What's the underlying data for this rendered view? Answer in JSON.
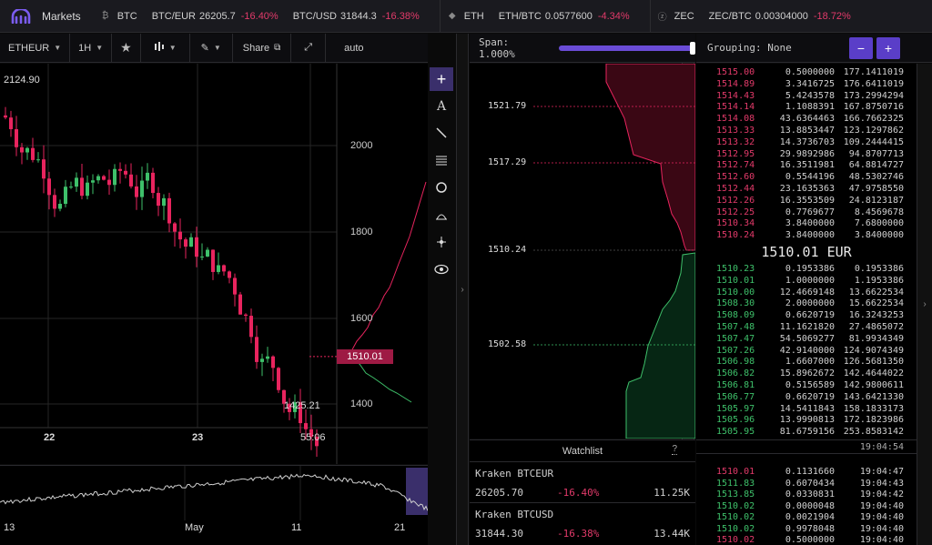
{
  "topbar": {
    "markets_label": "Markets",
    "coins": [
      {
        "icon": "bitcoin-icon",
        "glyph": "₿",
        "symbol": "BTC",
        "pairs": [
          {
            "name": "BTC/EUR",
            "price": "26205.7",
            "change": "-16.40%"
          },
          {
            "name": "BTC/USD",
            "price": "31844.3",
            "change": "-16.38%"
          }
        ]
      },
      {
        "icon": "ethereum-icon",
        "glyph": "◆",
        "symbol": "ETH",
        "pairs": [
          {
            "name": "ETH/BTC",
            "price": "0.0577600",
            "change": "-4.34%"
          }
        ]
      },
      {
        "icon": "zcash-icon",
        "glyph": "ⓩ",
        "symbol": "ZEC",
        "pairs": [
          {
            "name": "ZEC/BTC",
            "price": "0.00304000",
            "change": "-18.72%"
          }
        ]
      }
    ]
  },
  "chart_toolbar": {
    "pair": "ETHEUR",
    "interval": "1H",
    "share_label": "Share",
    "scale_mode": "auto"
  },
  "chart": {
    "price_labels": [
      "2000",
      "1800",
      "1600",
      "1400"
    ],
    "top_left_value": "2124.90",
    "current_price": "1510.01",
    "low_value": "1425.21",
    "date_labels": [
      "22",
      "23"
    ],
    "countdown": "55:06"
  },
  "mini_chart": {
    "date_labels": [
      "13",
      "May",
      "11",
      "21"
    ]
  },
  "depth": {
    "span_label": "Span: 1.000%",
    "levels": [
      "1521.79",
      "1517.29",
      "1510.24",
      "1502.58"
    ]
  },
  "watchlist": {
    "title": "Watchlist",
    "help": "?",
    "items": [
      {
        "name": "Kraken BTCEUR",
        "price": "26205.70",
        "change": "-16.40%",
        "volume": "11.25K"
      },
      {
        "name": "Kraken BTCUSD",
        "price": "31844.30",
        "change": "-16.38%",
        "volume": "13.44K"
      }
    ]
  },
  "orderbook": {
    "grouping_label": "Grouping: None",
    "minus": "−",
    "plus": "+",
    "asks": [
      [
        "1515.00",
        "0.5000000",
        "177.1411019"
      ],
      [
        "1514.89",
        "3.3416725",
        "176.6411019"
      ],
      [
        "1514.43",
        "5.4243578",
        "173.2994294"
      ],
      [
        "1514.14",
        "1.1088391",
        "167.8750716"
      ],
      [
        "1514.08",
        "43.6364463",
        "166.7662325"
      ],
      [
        "1513.33",
        "13.8853447",
        "123.1297862"
      ],
      [
        "1513.32",
        "14.3736703",
        "109.2444415"
      ],
      [
        "1512.95",
        "29.9892986",
        "94.8707713"
      ],
      [
        "1512.74",
        "16.3511981",
        "64.8814727"
      ],
      [
        "1512.60",
        "0.5544196",
        "48.5302746"
      ],
      [
        "1512.44",
        "23.1635363",
        "47.9758550"
      ],
      [
        "1512.26",
        "16.3553509",
        "24.8123187"
      ],
      [
        "1512.25",
        "0.7769677",
        "8.4569678"
      ],
      [
        "1510.34",
        "3.8400000",
        "7.6800000"
      ],
      [
        "1510.24",
        "3.8400000",
        "3.8400000"
      ]
    ],
    "mid_price": "1510.01 EUR",
    "bids": [
      [
        "1510.23",
        "0.1953386",
        "0.1953386"
      ],
      [
        "1510.01",
        "1.0000000",
        "1.1953386"
      ],
      [
        "1510.00",
        "12.4669148",
        "13.6622534"
      ],
      [
        "1508.30",
        "2.0000000",
        "15.6622534"
      ],
      [
        "1508.09",
        "0.6620719",
        "16.3243253"
      ],
      [
        "1507.48",
        "11.1621820",
        "27.4865072"
      ],
      [
        "1507.47",
        "54.5069277",
        "81.9934349"
      ],
      [
        "1507.26",
        "42.9140000",
        "124.9074349"
      ],
      [
        "1506.98",
        "1.6607000",
        "126.5681350"
      ],
      [
        "1506.82",
        "15.8962672",
        "142.4644022"
      ],
      [
        "1506.81",
        "0.5156589",
        "142.9800611"
      ],
      [
        "1506.77",
        "0.6620719",
        "143.6421330"
      ],
      [
        "1505.97",
        "14.5411843",
        "158.1833173"
      ],
      [
        "1505.96",
        "13.9990813",
        "172.1823986"
      ],
      [
        "1505.95",
        "81.6759156",
        "253.8583142"
      ]
    ],
    "time_header": "19:04:54",
    "trades": [
      [
        "1510.01",
        "0.1131660",
        "19:04:47",
        "ask"
      ],
      [
        "1511.83",
        "0.6070434",
        "19:04:43",
        "bid"
      ],
      [
        "1513.85",
        "0.0330831",
        "19:04:42",
        "bid"
      ],
      [
        "1510.02",
        "0.0000048",
        "19:04:40",
        "bid"
      ],
      [
        "1510.02",
        "0.0021904",
        "19:04:40",
        "bid"
      ],
      [
        "1510.02",
        "0.9978048",
        "19:04:40",
        "bid"
      ],
      [
        "1510.02",
        "0.5000000",
        "19:04:40",
        "ask"
      ]
    ]
  },
  "colors": {
    "ask": "#e23a6a",
    "bid": "#3ec06a",
    "accent": "#5a3ec8"
  }
}
